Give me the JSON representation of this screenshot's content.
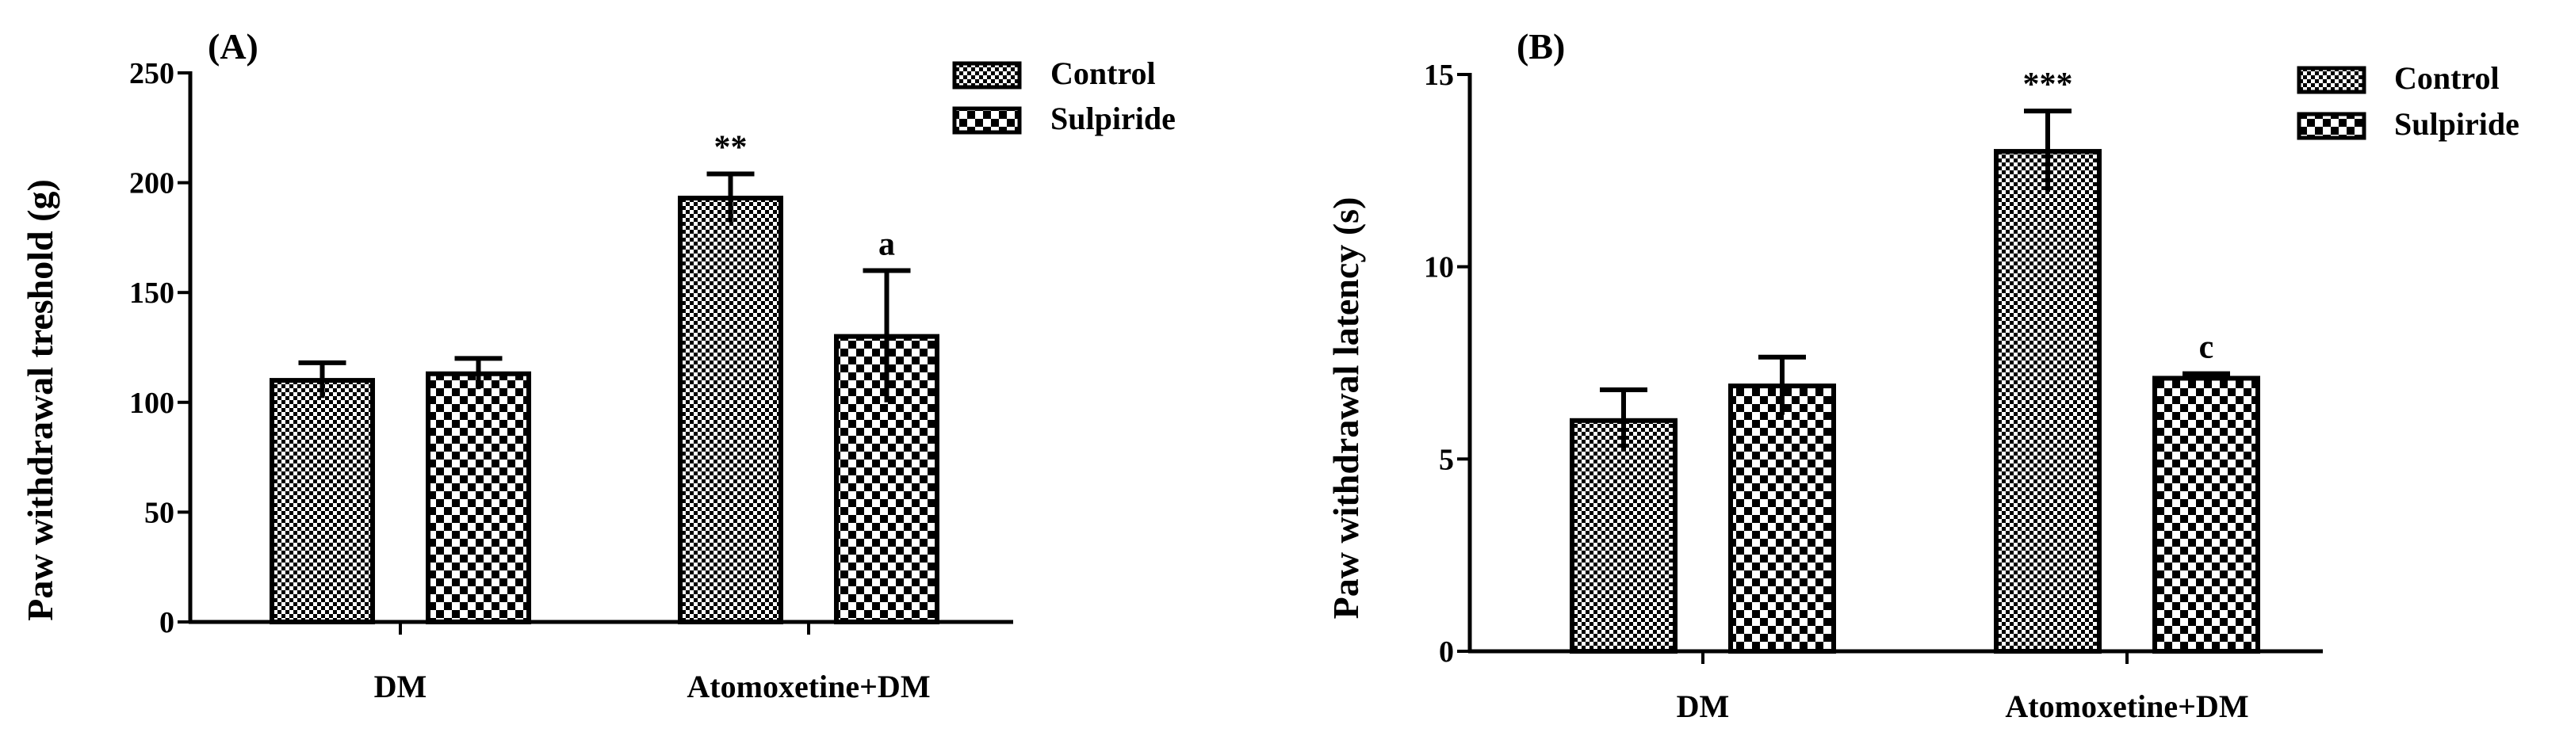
{
  "chart_data": [
    {
      "type": "bar",
      "panel_label": "(A)",
      "categories": [
        "DM",
        "Atomoxetine+DM"
      ],
      "series": [
        {
          "name": "Control",
          "pattern": "fine-checker",
          "values": [
            110,
            193
          ],
          "errors": [
            8,
            11
          ]
        },
        {
          "name": "Sulpiride",
          "pattern": "coarse-checker",
          "values": [
            113,
            130
          ],
          "errors": [
            7,
            30
          ]
        }
      ],
      "annotations": [
        {
          "text": "**",
          "category": "Atomoxetine+DM",
          "series": "Control"
        },
        {
          "text": "a",
          "category": "Atomoxetine+DM",
          "series": "Sulpiride"
        }
      ],
      "ylabel": "Paw withdrawal treshold (g)",
      "xlabel": "",
      "ylim": [
        0,
        250
      ],
      "yticks": [
        "0",
        "50",
        "100",
        "150",
        "200",
        "250"
      ],
      "legend_position": "top-right",
      "grid": false
    },
    {
      "type": "bar",
      "panel_label": "(B)",
      "categories": [
        "DM",
        "Atomoxetine+DM"
      ],
      "series": [
        {
          "name": "Control",
          "pattern": "fine-checker",
          "values": [
            6.0,
            13.0
          ],
          "errors": [
            0.8,
            1.05
          ]
        },
        {
          "name": "Sulpiride",
          "pattern": "coarse-checker",
          "values": [
            6.9,
            7.1
          ],
          "errors": [
            0.75,
            0.12
          ]
        }
      ],
      "annotations": [
        {
          "text": "***",
          "category": "Atomoxetine+DM",
          "series": "Control"
        },
        {
          "text": "c",
          "category": "Atomoxetine+DM",
          "series": "Sulpiride"
        }
      ],
      "ylabel": "Paw withdrawal latency (s)",
      "xlabel": "",
      "ylim": [
        0,
        15
      ],
      "yticks": [
        "0",
        "5",
        "10",
        "15"
      ],
      "legend_position": "top-right",
      "grid": false
    }
  ]
}
